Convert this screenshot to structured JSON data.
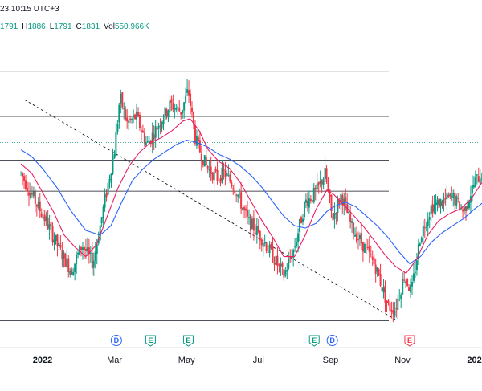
{
  "header": {
    "title": "23 10:15 UTC+3"
  },
  "ohlc": {
    "open": "1791",
    "high_prefix": "H",
    "high": "1886",
    "low_prefix": "L",
    "low": "1791",
    "close_prefix": "C",
    "close": "1831",
    "vol_prefix": "Vol",
    "vol": "550.966K"
  },
  "colors": {
    "up": "#089981",
    "down": "#f23645",
    "ma_fast": "#e91e63",
    "ma_slow": "#2962ff",
    "level_line": "#131722",
    "dotted_price": "#089981"
  },
  "events": [
    {
      "letter": "D",
      "color": "#2962ff",
      "month_pos": 2.05
    },
    {
      "letter": "E",
      "color": "#089981",
      "month_pos": 3.0
    },
    {
      "letter": "E",
      "color": "#089981",
      "month_pos": 4.05
    },
    {
      "letter": "E",
      "color": "#089981",
      "month_pos": 7.55
    },
    {
      "letter": "D",
      "color": "#2962ff",
      "month_pos": 8.05
    },
    {
      "letter": "E",
      "color": "#f23645",
      "month_pos": 10.2
    }
  ],
  "chart_data": {
    "type": "candlestick",
    "x_axis": {
      "ticks": [
        {
          "label": "2022",
          "month_pos": 0.0,
          "bold": true
        },
        {
          "label": "Mar",
          "month_pos": 2.0,
          "bold": false
        },
        {
          "label": "May",
          "month_pos": 4.0,
          "bold": false
        },
        {
          "label": "Jul",
          "month_pos": 6.0,
          "bold": false
        },
        {
          "label": "Sep",
          "month_pos": 8.0,
          "bold": false
        },
        {
          "label": "Nov",
          "month_pos": 10.0,
          "bold": false
        },
        {
          "label": "202",
          "month_pos": 12.0,
          "bold": true
        }
      ]
    },
    "price_range": [
      1065,
      2190
    ],
    "fib_levels": [
      2110,
      1920,
      1735,
      1605,
      1475,
      1320,
      1060
    ],
    "last_price": 1810,
    "trendline": {
      "from": [
        -0.5,
        1990
      ],
      "to": [
        9.8,
        1065
      ]
    },
    "price_path": [
      [
        -0.6,
        1680
      ],
      [
        -0.2,
        1560
      ],
      [
        0.1,
        1480
      ],
      [
        0.5,
        1350
      ],
      [
        0.8,
        1270
      ],
      [
        1.1,
        1380
      ],
      [
        1.4,
        1300
      ],
      [
        1.7,
        1540
      ],
      [
        2.0,
        1780
      ],
      [
        2.15,
        2000
      ],
      [
        2.35,
        1890
      ],
      [
        2.6,
        1920
      ],
      [
        2.9,
        1800
      ],
      [
        3.2,
        1880
      ],
      [
        3.55,
        1970
      ],
      [
        3.85,
        1940
      ],
      [
        4.05,
        2030
      ],
      [
        4.25,
        1820
      ],
      [
        4.55,
        1710
      ],
      [
        4.85,
        1660
      ],
      [
        5.05,
        1680
      ],
      [
        5.35,
        1620
      ],
      [
        5.7,
        1480
      ],
      [
        6.0,
        1430
      ],
      [
        6.4,
        1330
      ],
      [
        6.7,
        1250
      ],
      [
        7.0,
        1370
      ],
      [
        7.3,
        1560
      ],
      [
        7.6,
        1600
      ],
      [
        7.85,
        1680
      ],
      [
        8.05,
        1490
      ],
      [
        8.3,
        1590
      ],
      [
        8.6,
        1450
      ],
      [
        8.9,
        1380
      ],
      [
        9.25,
        1290
      ],
      [
        9.6,
        1120
      ],
      [
        9.8,
        1110
      ],
      [
        10.05,
        1250
      ],
      [
        10.25,
        1180
      ],
      [
        10.5,
        1420
      ],
      [
        10.8,
        1540
      ],
      [
        11.1,
        1560
      ],
      [
        11.4,
        1580
      ],
      [
        11.7,
        1520
      ],
      [
        12.0,
        1640
      ],
      [
        12.3,
        1700
      ]
    ],
    "ma_fast_path": [
      [
        -0.6,
        1720
      ],
      [
        -0.3,
        1680
      ],
      [
        0.0,
        1600
      ],
      [
        0.3,
        1520
      ],
      [
        0.6,
        1420
      ],
      [
        0.9,
        1370
      ],
      [
        1.2,
        1330
      ],
      [
        1.5,
        1380
      ],
      [
        1.8,
        1500
      ],
      [
        2.1,
        1620
      ],
      [
        2.4,
        1710
      ],
      [
        2.7,
        1770
      ],
      [
        3.0,
        1810
      ],
      [
        3.3,
        1830
      ],
      [
        3.6,
        1860
      ],
      [
        3.9,
        1900
      ],
      [
        4.1,
        1910
      ],
      [
        4.35,
        1860
      ],
      [
        4.6,
        1780
      ],
      [
        4.9,
        1730
      ],
      [
        5.2,
        1700
      ],
      [
        5.5,
        1640
      ],
      [
        5.8,
        1560
      ],
      [
        6.1,
        1480
      ],
      [
        6.4,
        1410
      ],
      [
        6.7,
        1330
      ],
      [
        7.0,
        1330
      ],
      [
        7.3,
        1420
      ],
      [
        7.6,
        1530
      ],
      [
        7.9,
        1610
      ],
      [
        8.1,
        1590
      ],
      [
        8.35,
        1550
      ],
      [
        8.6,
        1510
      ],
      [
        8.9,
        1460
      ],
      [
        9.2,
        1400
      ],
      [
        9.5,
        1340
      ],
      [
        9.8,
        1290
      ],
      [
        10.1,
        1260
      ],
      [
        10.4,
        1320
      ],
      [
        10.7,
        1420
      ],
      [
        11.0,
        1480
      ],
      [
        11.3,
        1510
      ],
      [
        11.6,
        1530
      ],
      [
        11.9,
        1570
      ],
      [
        12.2,
        1640
      ],
      [
        12.35,
        1680
      ]
    ],
    "ma_slow_path": [
      [
        -0.6,
        1780
      ],
      [
        -0.3,
        1750
      ],
      [
        0.0,
        1700
      ],
      [
        0.4,
        1620
      ],
      [
        0.8,
        1520
      ],
      [
        1.2,
        1440
      ],
      [
        1.6,
        1420
      ],
      [
        1.9,
        1460
      ],
      [
        2.2,
        1560
      ],
      [
        2.5,
        1650
      ],
      [
        2.8,
        1700
      ],
      [
        3.1,
        1740
      ],
      [
        3.4,
        1770
      ],
      [
        3.7,
        1800
      ],
      [
        4.0,
        1820
      ],
      [
        4.3,
        1810
      ],
      [
        4.6,
        1790
      ],
      [
        4.9,
        1760
      ],
      [
        5.2,
        1740
      ],
      [
        5.5,
        1710
      ],
      [
        5.8,
        1670
      ],
      [
        6.1,
        1620
      ],
      [
        6.4,
        1560
      ],
      [
        6.7,
        1500
      ],
      [
        7.0,
        1460
      ],
      [
        7.3,
        1450
      ],
      [
        7.6,
        1470
      ],
      [
        7.9,
        1520
      ],
      [
        8.1,
        1540
      ],
      [
        8.4,
        1560
      ],
      [
        8.7,
        1540
      ],
      [
        9.0,
        1500
      ],
      [
        9.3,
        1460
      ],
      [
        9.6,
        1410
      ],
      [
        9.9,
        1350
      ],
      [
        10.2,
        1300
      ],
      [
        10.5,
        1330
      ],
      [
        10.8,
        1390
      ],
      [
        11.1,
        1430
      ],
      [
        11.4,
        1460
      ],
      [
        11.7,
        1490
      ],
      [
        12.0,
        1530
      ],
      [
        12.35,
        1570
      ]
    ]
  }
}
